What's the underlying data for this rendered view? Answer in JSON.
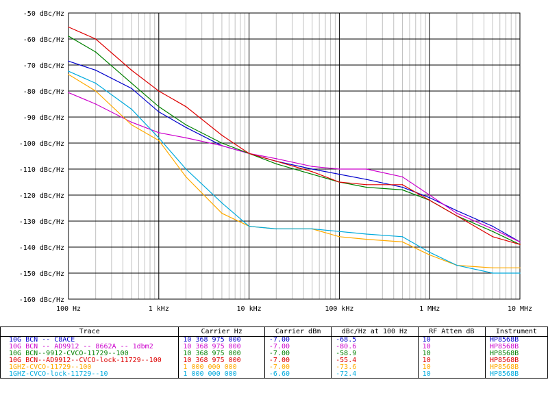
{
  "chart_data": {
    "type": "line",
    "x_scale": "log",
    "xlim": [
      100,
      10000000
    ],
    "ylim": [
      -160,
      -50
    ],
    "x_ticks": [
      100,
      1000,
      10000,
      100000,
      1000000,
      10000000
    ],
    "x_tick_labels": [
      "100 Hz",
      "1 kHz",
      "10 kHz",
      "100 kHz",
      "1 MHz",
      "10 MHz"
    ],
    "y_ticks": [
      -50,
      -60,
      -70,
      -80,
      -90,
      -100,
      -110,
      -120,
      -130,
      -140,
      -150,
      -160
    ],
    "y_tick_labels": [
      "-50 dBc/Hz",
      "-60 dBc/Hz",
      "-70 dBc/Hz",
      "-80 dBc/Hz",
      "-90 dBc/Hz",
      "-100 dBc/Hz",
      "-110 dBc/Hz",
      "-120 dBc/Hz",
      "-130 dBc/Hz",
      "-140 dBc/Hz",
      "-150 dBc/Hz",
      "-160 dBc/Hz"
    ],
    "grid": true,
    "series": [
      {
        "name": "10G BCN -- C8ACE",
        "color": "#0000cc",
        "x": [
          100,
          200,
          500,
          1000,
          2000,
          5000,
          10000,
          20000,
          50000,
          100000,
          200000,
          500000,
          1000000,
          2000000,
          5000000,
          10000000
        ],
        "y": [
          -68.5,
          -72,
          -79,
          -88,
          -94,
          -101,
          -104,
          -107,
          -110,
          -112,
          -114,
          -117,
          -121,
          -126,
          -132,
          -138
        ]
      },
      {
        "name": "10G BCN -- AD9912 -- 8662A -- 1dbm2",
        "color": "#cc00cc",
        "x": [
          100,
          200,
          500,
          1000,
          2000,
          5000,
          10000,
          20000,
          50000,
          100000,
          200000,
          500000,
          1000000,
          2000000,
          5000000,
          10000000
        ],
        "y": [
          -80.6,
          -85,
          -92,
          -96,
          -98,
          -101,
          -104,
          -106,
          -109,
          -110,
          -110,
          -113,
          -120,
          -127,
          -133,
          -138
        ]
      },
      {
        "name": "10G BCN--9912-CVCO-11729--100",
        "color": "#008000",
        "x": [
          100,
          200,
          500,
          1000,
          2000,
          5000,
          10000,
          20000,
          50000,
          100000,
          200000,
          500000,
          1000000,
          2000000,
          5000000,
          10000000
        ],
        "y": [
          -58.9,
          -65,
          -77,
          -86,
          -93,
          -100,
          -104,
          -108,
          -112,
          -115,
          -117,
          -118,
          -122,
          -128,
          -134,
          -139
        ]
      },
      {
        "name": "10G BCN--AD9912--CVCO-lock-11729--100",
        "color": "#dd0000",
        "x": [
          100,
          200,
          500,
          1000,
          2000,
          5000,
          10000,
          20000,
          50000,
          100000,
          200000,
          500000,
          1000000,
          2000000,
          5000000,
          10000000
        ],
        "y": [
          -55.4,
          -60,
          -72,
          -80,
          -86,
          -97,
          -104,
          -107,
          -111,
          -115,
          -116,
          -116,
          -122,
          -128,
          -136,
          -139
        ]
      },
      {
        "name": "1GHZ-CVCO-11729--100",
        "color": "#ffaa00",
        "x": [
          100,
          200,
          500,
          1000,
          2000,
          5000,
          10000,
          20000,
          50000,
          100000,
          200000,
          500000,
          1000000,
          2000000,
          5000000,
          10000000
        ],
        "y": [
          -73.6,
          -80,
          -93,
          -99,
          -113,
          -127,
          -132,
          -133,
          -133,
          -136,
          -137,
          -138,
          -143,
          -147,
          -148,
          -148
        ]
      },
      {
        "name": "1GHZ-CVCO-lock-11729--10",
        "color": "#00aadd",
        "x": [
          100,
          200,
          500,
          1000,
          2000,
          5000,
          10000,
          20000,
          50000,
          100000,
          200000,
          500000,
          1000000,
          2000000,
          5000000,
          10000000
        ],
        "y": [
          -72.4,
          -77,
          -87,
          -98,
          -110,
          -123,
          -132,
          -133,
          -133,
          -134,
          -135,
          -136,
          -142,
          -147,
          -150,
          -150
        ]
      }
    ]
  },
  "table": {
    "headers": [
      "Trace",
      "Carrier Hz",
      "Carrier dBm",
      "dBc/Hz at 100 Hz",
      "RF Atten dB",
      "Instrument"
    ],
    "rows": [
      {
        "color": "#0000cc",
        "cells": [
          "10G BCN -- C8ACE",
          "10 368 975 000",
          "-7.00",
          "-68.5",
          "10",
          "HP8568B"
        ]
      },
      {
        "color": "#cc00cc",
        "cells": [
          "10G BCN -- AD9912 -- 8662A -- 1dbm2",
          "10 368 975 000",
          "-7.00",
          "-80.6",
          "10",
          "HP8568B"
        ]
      },
      {
        "color": "#008000",
        "cells": [
          "10G BCN--9912-CVCO-11729--100",
          "10 368 975 000",
          "-7.00",
          "-58.9",
          "10",
          "HP8568B"
        ]
      },
      {
        "color": "#dd0000",
        "cells": [
          "10G BCN--AD9912--CVCO-lock-11729--100",
          "10 368 975 000",
          "-7.00",
          "-55.4",
          "10",
          "HP8568B"
        ]
      },
      {
        "color": "#ffaa00",
        "cells": [
          "1GHZ-CVCO-11729--100",
          "1 000 000 000",
          "-7.00",
          "-73.6",
          "10",
          "HP8568B"
        ]
      },
      {
        "color": "#00aadd",
        "cells": [
          "1GHZ-CVCO-lock-11729--10",
          "1 000 000 000",
          "-6.60",
          "-72.4",
          "10",
          "HP8568B"
        ]
      }
    ]
  }
}
